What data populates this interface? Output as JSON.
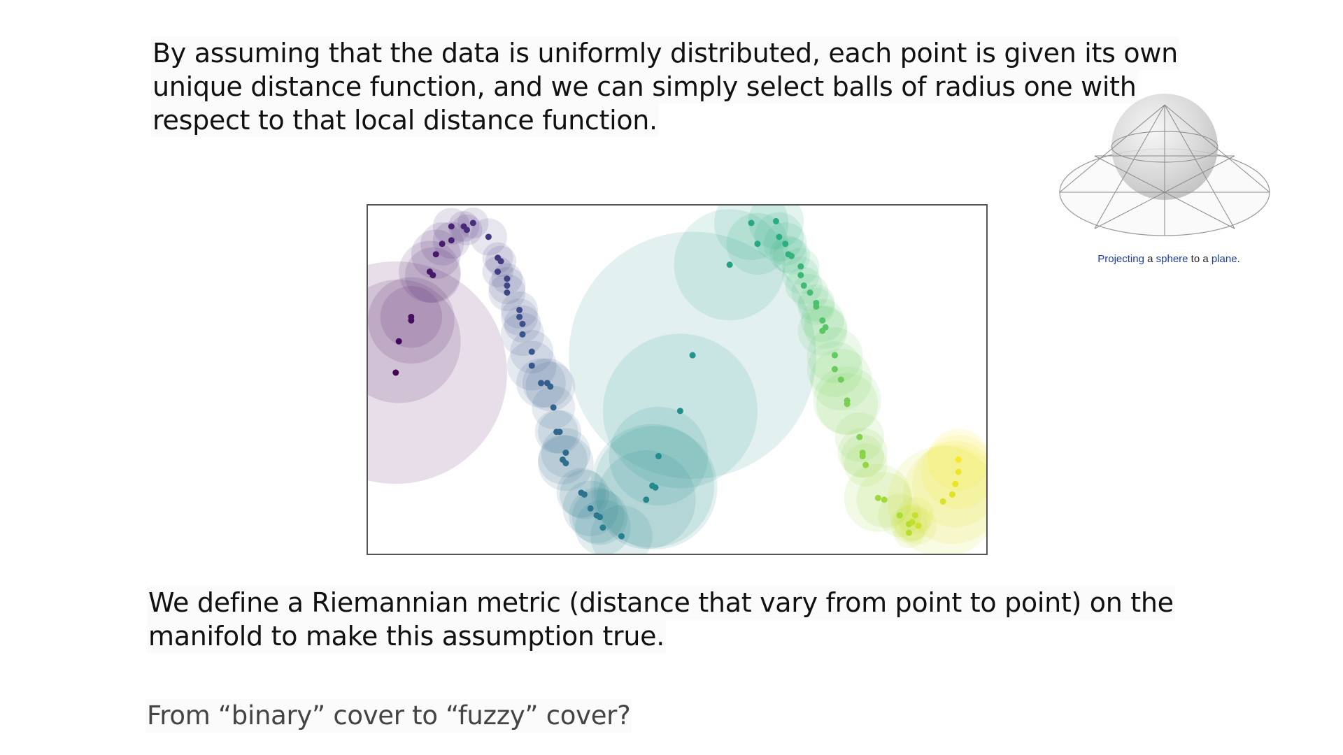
{
  "paragraph_top": {
    "lines": [
      "By assuming that the data is uniformly distributed, each point is given its own",
      "unique distance function, and we can simply select balls of radius one with",
      "respect to that local distance function."
    ]
  },
  "paragraph_bottom": {
    "lines": [
      "We define a Riemannian metric (distance that vary from point to point) on the",
      "manifold to make this assumption true."
    ]
  },
  "question": "From “binary” cover to “fuzzy” cover?",
  "sphere_caption": {
    "word1": "Projecting",
    "word2": " a ",
    "word3": "sphere",
    "word4": " to a ",
    "word5": "plane",
    "word6": "."
  },
  "colors": {
    "link": "#1a3aa8",
    "frame": "#555555"
  },
  "chart_data": {
    "type": "scatter",
    "colormap": "viridis",
    "xlim": [
      0,
      1
    ],
    "ylim": [
      0,
      1
    ],
    "note_units": "normalized plot coordinates",
    "points": [
      {
        "x": 0.045,
        "y": 0.52,
        "r": 0.18,
        "c": 0.0
      },
      {
        "x": 0.05,
        "y": 0.61,
        "r": 0.1,
        "c": 0.02
      },
      {
        "x": 0.07,
        "y": 0.67,
        "r": 0.07,
        "c": 0.04
      },
      {
        "x": 0.07,
        "y": 0.68,
        "r": 0.05,
        "c": 0.05
      },
      {
        "x": 0.1,
        "y": 0.81,
        "r": 0.05,
        "c": 0.06
      },
      {
        "x": 0.105,
        "y": 0.8,
        "r": 0.045,
        "c": 0.07
      },
      {
        "x": 0.11,
        "y": 0.86,
        "r": 0.04,
        "c": 0.08
      },
      {
        "x": 0.12,
        "y": 0.89,
        "r": 0.035,
        "c": 0.09
      },
      {
        "x": 0.135,
        "y": 0.9,
        "r": 0.03,
        "c": 0.1
      },
      {
        "x": 0.135,
        "y": 0.94,
        "r": 0.03,
        "c": 0.11
      },
      {
        "x": 0.155,
        "y": 0.94,
        "r": 0.025,
        "c": 0.12
      },
      {
        "x": 0.16,
        "y": 0.93,
        "r": 0.025,
        "c": 0.13
      },
      {
        "x": 0.17,
        "y": 0.95,
        "r": 0.025,
        "c": 0.14
      },
      {
        "x": 0.195,
        "y": 0.91,
        "r": 0.03,
        "c": 0.16
      },
      {
        "x": 0.21,
        "y": 0.85,
        "r": 0.025,
        "c": 0.17
      },
      {
        "x": 0.215,
        "y": 0.84,
        "r": 0.025,
        "c": 0.18
      },
      {
        "x": 0.21,
        "y": 0.81,
        "r": 0.025,
        "c": 0.19
      },
      {
        "x": 0.225,
        "y": 0.79,
        "r": 0.025,
        "c": 0.2
      },
      {
        "x": 0.225,
        "y": 0.77,
        "r": 0.03,
        "c": 0.21
      },
      {
        "x": 0.225,
        "y": 0.75,
        "r": 0.03,
        "c": 0.22
      },
      {
        "x": 0.245,
        "y": 0.7,
        "r": 0.03,
        "c": 0.23
      },
      {
        "x": 0.245,
        "y": 0.68,
        "r": 0.03,
        "c": 0.24
      },
      {
        "x": 0.25,
        "y": 0.66,
        "r": 0.03,
        "c": 0.25
      },
      {
        "x": 0.25,
        "y": 0.63,
        "r": 0.035,
        "c": 0.26
      },
      {
        "x": 0.265,
        "y": 0.58,
        "r": 0.035,
        "c": 0.27
      },
      {
        "x": 0.265,
        "y": 0.54,
        "r": 0.04,
        "c": 0.28
      },
      {
        "x": 0.28,
        "y": 0.49,
        "r": 0.04,
        "c": 0.29
      },
      {
        "x": 0.29,
        "y": 0.49,
        "r": 0.04,
        "c": 0.3
      },
      {
        "x": 0.295,
        "y": 0.48,
        "r": 0.04,
        "c": 0.31
      },
      {
        "x": 0.3,
        "y": 0.42,
        "r": 0.035,
        "c": 0.32
      },
      {
        "x": 0.305,
        "y": 0.35,
        "r": 0.035,
        "c": 0.33
      },
      {
        "x": 0.31,
        "y": 0.35,
        "r": 0.035,
        "c": 0.34
      },
      {
        "x": 0.32,
        "y": 0.29,
        "r": 0.04,
        "c": 0.35
      },
      {
        "x": 0.315,
        "y": 0.27,
        "r": 0.04,
        "c": 0.36
      },
      {
        "x": 0.32,
        "y": 0.26,
        "r": 0.045,
        "c": 0.37
      },
      {
        "x": 0.345,
        "y": 0.175,
        "r": 0.04,
        "c": 0.38
      },
      {
        "x": 0.35,
        "y": 0.17,
        "r": 0.04,
        "c": 0.39
      },
      {
        "x": 0.36,
        "y": 0.13,
        "r": 0.045,
        "c": 0.4
      },
      {
        "x": 0.37,
        "y": 0.11,
        "r": 0.045,
        "c": 0.41
      },
      {
        "x": 0.375,
        "y": 0.105,
        "r": 0.045,
        "c": 0.42
      },
      {
        "x": 0.38,
        "y": 0.075,
        "r": 0.045,
        "c": 0.43
      },
      {
        "x": 0.41,
        "y": 0.05,
        "r": 0.05,
        "c": 0.44
      },
      {
        "x": 0.45,
        "y": 0.155,
        "r": 0.08,
        "c": 0.46
      },
      {
        "x": 0.46,
        "y": 0.195,
        "r": 0.1,
        "c": 0.47
      },
      {
        "x": 0.465,
        "y": 0.19,
        "r": 0.1,
        "c": 0.48
      },
      {
        "x": 0.47,
        "y": 0.28,
        "r": 0.08,
        "c": 0.49
      },
      {
        "x": 0.505,
        "y": 0.41,
        "r": 0.125,
        "c": 0.5
      },
      {
        "x": 0.525,
        "y": 0.57,
        "r": 0.2,
        "c": 0.52
      },
      {
        "x": 0.585,
        "y": 0.83,
        "r": 0.09,
        "c": 0.58
      },
      {
        "x": 0.62,
        "y": 0.95,
        "r": 0.06,
        "c": 0.6
      },
      {
        "x": 0.63,
        "y": 0.89,
        "r": 0.05,
        "c": 0.61
      },
      {
        "x": 0.66,
        "y": 0.955,
        "r": 0.045,
        "c": 0.62
      },
      {
        "x": 0.665,
        "y": 0.91,
        "r": 0.04,
        "c": 0.63
      },
      {
        "x": 0.675,
        "y": 0.89,
        "r": 0.035,
        "c": 0.64
      },
      {
        "x": 0.68,
        "y": 0.86,
        "r": 0.03,
        "c": 0.65
      },
      {
        "x": 0.685,
        "y": 0.855,
        "r": 0.03,
        "c": 0.66
      },
      {
        "x": 0.7,
        "y": 0.825,
        "r": 0.03,
        "c": 0.67
      },
      {
        "x": 0.7,
        "y": 0.8,
        "r": 0.03,
        "c": 0.68
      },
      {
        "x": 0.705,
        "y": 0.77,
        "r": 0.03,
        "c": 0.69
      },
      {
        "x": 0.715,
        "y": 0.75,
        "r": 0.03,
        "c": 0.7
      },
      {
        "x": 0.725,
        "y": 0.72,
        "r": 0.03,
        "c": 0.71
      },
      {
        "x": 0.725,
        "y": 0.71,
        "r": 0.03,
        "c": 0.72
      },
      {
        "x": 0.735,
        "y": 0.67,
        "r": 0.035,
        "c": 0.73
      },
      {
        "x": 0.74,
        "y": 0.65,
        "r": 0.035,
        "c": 0.74
      },
      {
        "x": 0.735,
        "y": 0.64,
        "r": 0.04,
        "c": 0.75
      },
      {
        "x": 0.755,
        "y": 0.57,
        "r": 0.045,
        "c": 0.76
      },
      {
        "x": 0.755,
        "y": 0.53,
        "r": 0.045,
        "c": 0.77
      },
      {
        "x": 0.765,
        "y": 0.5,
        "r": 0.05,
        "c": 0.78
      },
      {
        "x": 0.775,
        "y": 0.44,
        "r": 0.055,
        "c": 0.79
      },
      {
        "x": 0.775,
        "y": 0.43,
        "r": 0.05,
        "c": 0.8
      },
      {
        "x": 0.795,
        "y": 0.335,
        "r": 0.04,
        "c": 0.81
      },
      {
        "x": 0.8,
        "y": 0.29,
        "r": 0.04,
        "c": 0.82
      },
      {
        "x": 0.8,
        "y": 0.28,
        "r": 0.035,
        "c": 0.83
      },
      {
        "x": 0.805,
        "y": 0.255,
        "r": 0.035,
        "c": 0.84
      },
      {
        "x": 0.825,
        "y": 0.16,
        "r": 0.055,
        "c": 0.86
      },
      {
        "x": 0.835,
        "y": 0.155,
        "r": 0.045,
        "c": 0.87
      },
      {
        "x": 0.86,
        "y": 0.11,
        "r": 0.035,
        "c": 0.88
      },
      {
        "x": 0.875,
        "y": 0.085,
        "r": 0.03,
        "c": 0.89
      },
      {
        "x": 0.875,
        "y": 0.06,
        "r": 0.025,
        "c": 0.9
      },
      {
        "x": 0.88,
        "y": 0.09,
        "r": 0.03,
        "c": 0.91
      },
      {
        "x": 0.885,
        "y": 0.11,
        "r": 0.03,
        "c": 0.92
      },
      {
        "x": 0.89,
        "y": 0.08,
        "r": 0.03,
        "c": 0.93
      },
      {
        "x": 0.93,
        "y": 0.15,
        "r": 0.09,
        "c": 0.95
      },
      {
        "x": 0.945,
        "y": 0.17,
        "r": 0.08,
        "c": 0.96
      },
      {
        "x": 0.95,
        "y": 0.2,
        "r": 0.07,
        "c": 0.97
      },
      {
        "x": 0.955,
        "y": 0.235,
        "r": 0.06,
        "c": 0.98
      },
      {
        "x": 0.955,
        "y": 0.27,
        "r": 0.05,
        "c": 1.0
      }
    ]
  }
}
